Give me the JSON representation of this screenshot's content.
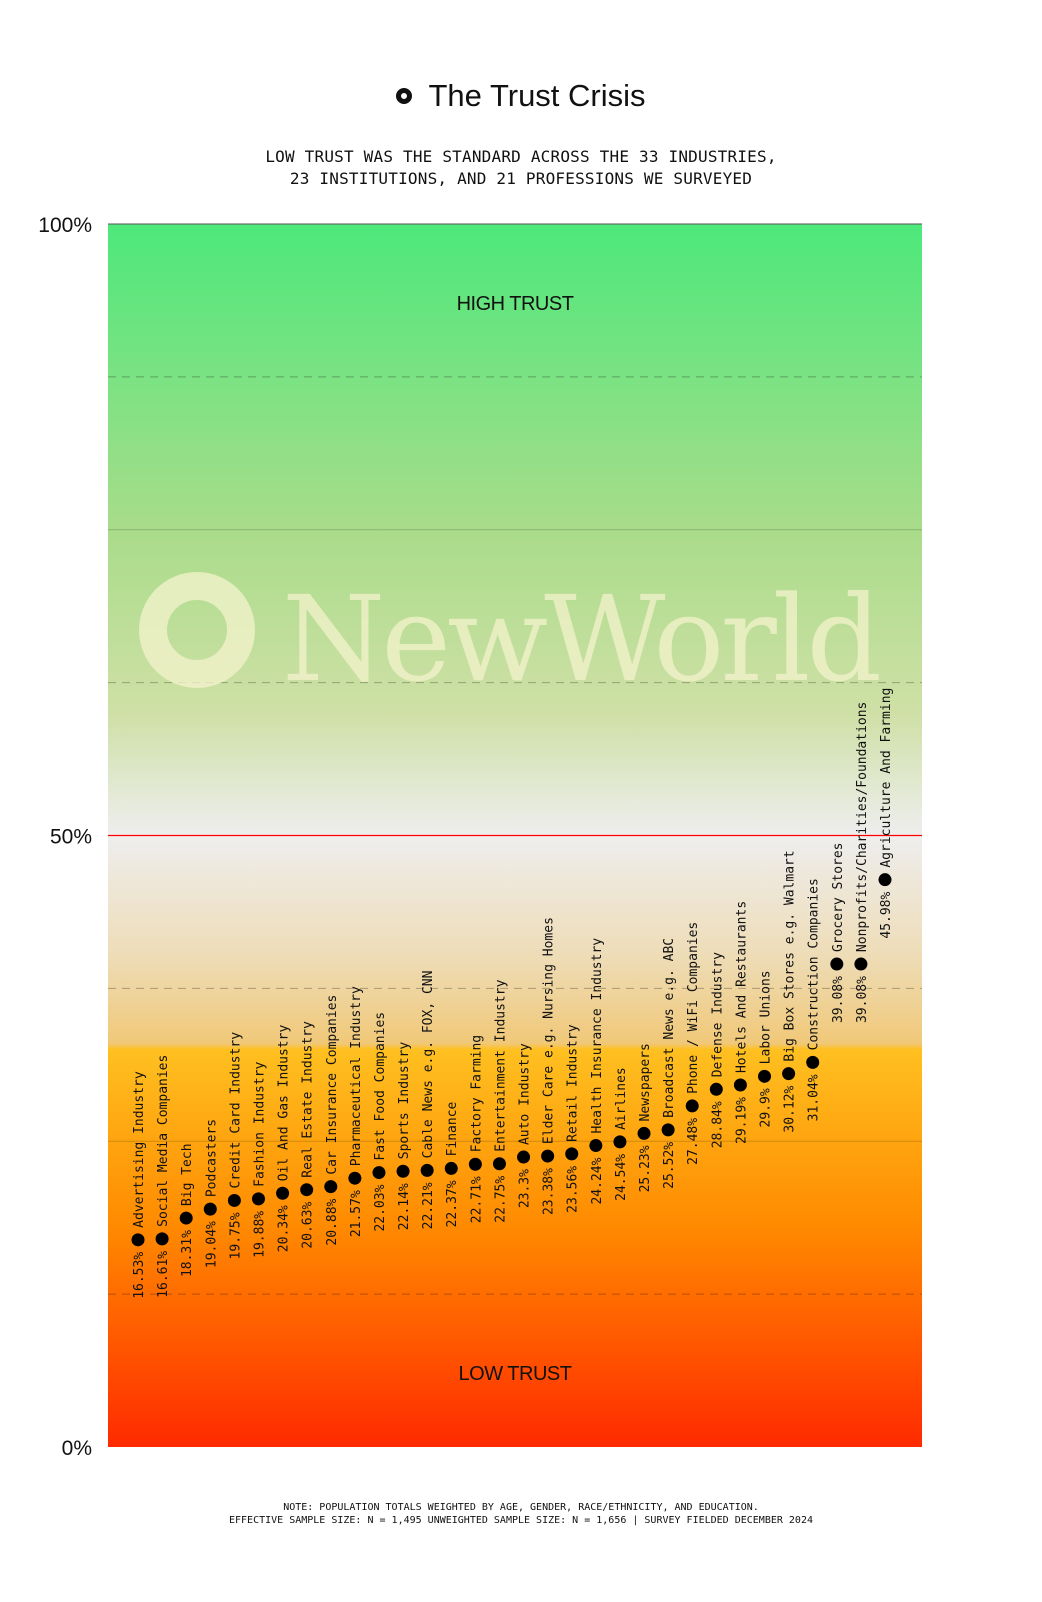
{
  "title": "The Trust Crisis",
  "subtitle_lines": [
    "LOW TRUST WAS THE STANDARD ACROSS THE 33 INDUSTRIES,",
    "23 INSTITUTIONS, AND 21 PROFESSIONS WE SURVEYED"
  ],
  "watermark": "NewWorld",
  "note_lines": [
    "NOTE: POPULATION TOTALS WEIGHTED BY AGE, GENDER, RACE/ETHNICITY, AND EDUCATION.",
    "EFFECTIVE SAMPLE SIZE: N = 1,495 UNWEIGHTED SAMPLE SIZE: N = 1,656 | SURVEY FIELDED DECEMBER 2024"
  ],
  "colors": {
    "top": "#4de87b",
    "middle": "#eeeeee",
    "orange": "#ffc020",
    "bottom": "#ff2a00",
    "midline": "#ff0000"
  },
  "chart_data": {
    "type": "scatter",
    "ylim": [
      0,
      100
    ],
    "y_ticks": [
      "0%",
      "50%",
      "100%"
    ],
    "midline": 50,
    "zone_labels": {
      "high": "HIGH TRUST",
      "low": "LOW TRUST"
    },
    "points": [
      {
        "label": "16.53%",
        "name": "Advertising Industry",
        "value": 16.53
      },
      {
        "label": "16.61%",
        "name": "Social Media Companies",
        "value": 16.61
      },
      {
        "label": "18.31%",
        "name": "Big Tech",
        "value": 18.31
      },
      {
        "label": "19.04%",
        "name": "Podcasters",
        "value": 19.04
      },
      {
        "label": "19.75%",
        "name": "Credit Card Industry",
        "value": 19.75
      },
      {
        "label": "19.88%",
        "name": "Fashion Industry",
        "value": 19.88
      },
      {
        "label": "20.34%",
        "name": "Oil And Gas Industry",
        "value": 20.34
      },
      {
        "label": "20.63%",
        "name": "Real Estate Industry",
        "value": 20.63
      },
      {
        "label": "20.88%",
        "name": "Car Insurance Companies",
        "value": 20.88
      },
      {
        "label": "21.57%",
        "name": "Pharmaceutical Industry",
        "value": 21.57
      },
      {
        "label": "22.03%",
        "name": "Fast Food Companies",
        "value": 22.03
      },
      {
        "label": "22.14%",
        "name": "Sports Industry",
        "value": 22.14
      },
      {
        "label": "22.21%",
        "name": "Cable News e.g. FOX, CNN",
        "value": 22.21
      },
      {
        "label": "22.37%",
        "name": "Finance",
        "value": 22.37
      },
      {
        "label": "22.71%",
        "name": "Factory Farming",
        "value": 22.71
      },
      {
        "label": "22.75%",
        "name": "Entertainment Industry",
        "value": 22.75
      },
      {
        "label": "23.3%",
        "name": "Auto Industry",
        "value": 23.3
      },
      {
        "label": "23.38%",
        "name": "Elder Care e.g. Nursing Homes",
        "value": 23.38
      },
      {
        "label": "23.56%",
        "name": "Retail Industry",
        "value": 23.56
      },
      {
        "label": "24.24%",
        "name": "Health Insurance Industry",
        "value": 24.24
      },
      {
        "label": "24.54%",
        "name": "Airlines",
        "value": 24.54
      },
      {
        "label": "25.23%",
        "name": "Newspapers",
        "value": 25.23
      },
      {
        "label": "25.52%",
        "name": "Broadcast News e.g. ABC",
        "value": 25.52
      },
      {
        "label": "27.48%",
        "name": "Phone / WiFi Companies",
        "value": 27.48
      },
      {
        "label": "28.84%",
        "name": "Defense Industry",
        "value": 28.84
      },
      {
        "label": "29.19%",
        "name": "Hotels And Restaurants",
        "value": 29.19
      },
      {
        "label": "29.9%",
        "name": "Labor Unions",
        "value": 29.9
      },
      {
        "label": "30.12%",
        "name": "Big Box Stores e.g. Walmart",
        "value": 30.12
      },
      {
        "label": "31.04%",
        "name": "Construction Companies",
        "value": 31.04
      },
      {
        "label": "39.08%",
        "name": "Grocery Stores",
        "value": 39.08
      },
      {
        "label": "39.08%",
        "name": "Nonprofits/Charities/Foundations",
        "value": 39.08
      },
      {
        "label": "45.98%",
        "name": "Agriculture And Farming",
        "value": 45.98
      }
    ]
  }
}
